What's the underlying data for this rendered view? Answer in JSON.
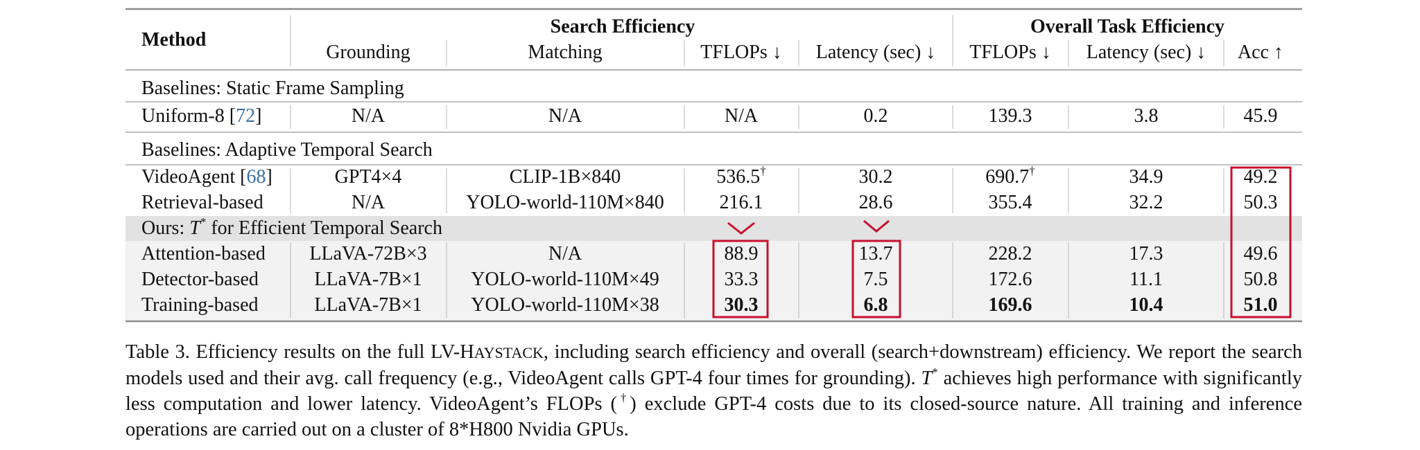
{
  "table": {
    "header": {
      "method": "Method",
      "group_search": "Search Efficiency",
      "group_overall": "Overall Task Efficiency",
      "cols": [
        "Grounding",
        "Matching",
        "TFLOPs ↓",
        "Latency (sec) ↓",
        "TFLOPs ↓",
        "Latency (sec) ↓",
        "Acc ↑"
      ]
    },
    "sections": {
      "static": "Baselines: Static Frame Sampling",
      "adaptive": "Baselines: Adaptive Temporal Search",
      "ours_prefix": "Ours: ",
      "ours_symbol": "T",
      "ours_star": "*",
      "ours_suffix": " for Efficient Temporal Search"
    },
    "rows": {
      "uniform": {
        "method": "Uniform-8 [",
        "ref": "72",
        "method_end": "]",
        "grounding": "N/A",
        "matching": "N/A",
        "s_tflops": "N/A",
        "s_latency": "0.2",
        "o_tflops": "139.3",
        "o_latency": "3.8",
        "acc": "45.9"
      },
      "videoagent": {
        "method": "VideoAgent [",
        "ref": "68",
        "method_end": "]",
        "grounding": "GPT4×4",
        "matching": "CLIP-1B×840",
        "s_tflops": "536.5",
        "s_tflops_mark": "†",
        "s_latency": "30.2",
        "o_tflops": "690.7",
        "o_tflops_mark": "†",
        "o_latency": "34.9",
        "acc": "49.2"
      },
      "retrieval": {
        "method": "Retrieval-based",
        "grounding": "N/A",
        "matching": "YOLO-world-110M×840",
        "s_tflops": "216.1",
        "s_latency": "28.6",
        "o_tflops": "355.4",
        "o_latency": "32.2",
        "acc": "50.3"
      },
      "attention": {
        "method": "Attention-based",
        "grounding": "LLaVA-72B×3",
        "matching": "N/A",
        "s_tflops": "88.9",
        "s_latency": "13.7",
        "o_tflops": "228.2",
        "o_latency": "17.3",
        "acc": "49.6"
      },
      "detector": {
        "method": "Detector-based",
        "grounding": "LLaVA-7B×1",
        "matching": "YOLO-world-110M×49",
        "s_tflops": "33.3",
        "s_latency": "7.5",
        "o_tflops": "172.6",
        "o_latency": "11.1",
        "acc": "50.8"
      },
      "training": {
        "method": "Training-based",
        "grounding": "LLaVA-7B×1",
        "matching": "YOLO-world-110M×38",
        "s_tflops": "30.3",
        "s_latency": "6.8",
        "o_tflops": "169.6",
        "o_latency": "10.4",
        "acc": "51.0"
      }
    }
  },
  "caption": {
    "label": "Table 3.",
    "text1": " Efficiency results on the full LV-H",
    "text1_sc": "AYSTACK",
    "text2": ", including search efficiency and overall (search+downstream) efficiency. We report the search models used and their avg. call frequency (e.g., VideoAgent calls GPT-4 four times for grounding). ",
    "t_symbol": "T",
    "t_star": "*",
    "text3": " achieves high performance with significantly less computation and lower latency. VideoAgent’s FLOPs (",
    "dagger": "†",
    "text4": ") exclude GPT-4 costs due to its closed-source nature. All training and inference operations are carried out on a cluster of 8*H800 Nvidia GPUs."
  },
  "colors": {
    "highlight_box": "#c8102e",
    "ours_band": "#e2e2e2",
    "ours_rows": "#f2f2f2",
    "rule": "#9a9a9a",
    "ref_link": "#3a6ea5"
  }
}
